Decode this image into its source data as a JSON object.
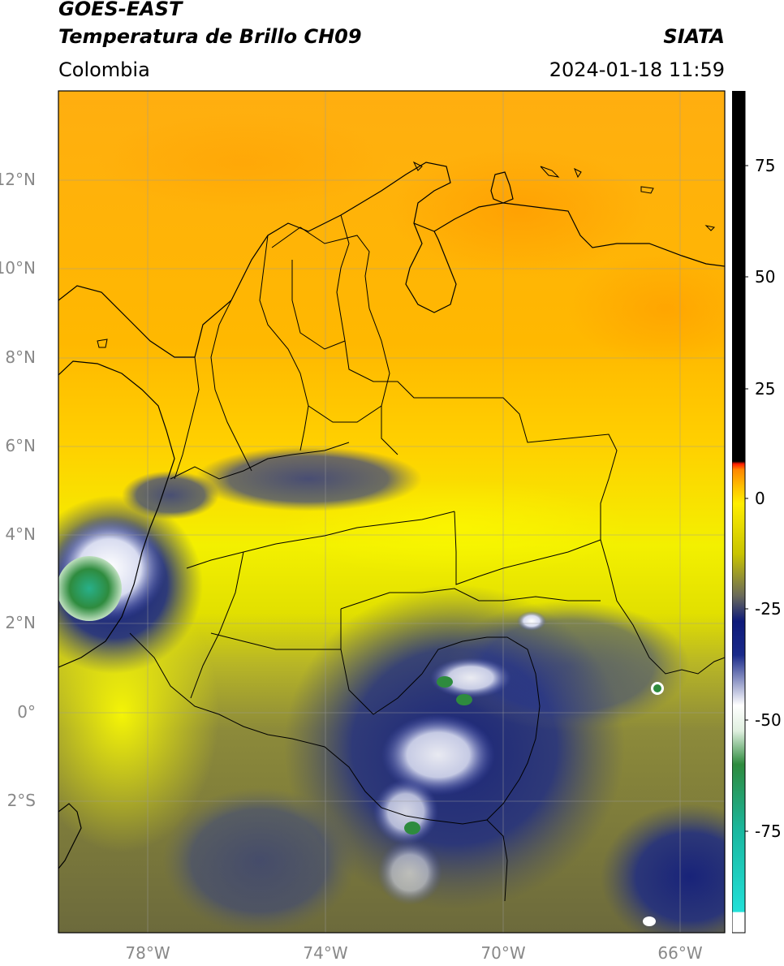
{
  "header": {
    "satellite": "GOES-EAST",
    "product": "Temperatura de Brillo CH09",
    "organization": "SIATA",
    "region": "Colombia",
    "datetime": "2024-01-18 11:59"
  },
  "map": {
    "lon_range": [
      -80,
      -65
    ],
    "lat_range": [
      -5,
      14
    ],
    "lat_ticks": [
      "12°N",
      "10°N",
      "8°N",
      "6°N",
      "4°N",
      "2°N",
      "0°",
      "2°S"
    ],
    "lon_ticks": [
      "78°W",
      "74°W",
      "70°W",
      "66°W"
    ],
    "gridlines": true
  },
  "colorbar": {
    "ticks": [
      "75",
      "50",
      "25",
      "0",
      "-25",
      "-50",
      "-75"
    ],
    "stops": [
      {
        "color": "#ffffff",
        "label": "bottom"
      },
      {
        "color": "#22e0d8"
      },
      {
        "color": "#2e8b3e"
      },
      {
        "color": "#ffffff"
      },
      {
        "color": "#1a2a8a"
      },
      {
        "color": "#0e1a7a"
      },
      {
        "color": "#8b8b3a"
      },
      {
        "color": "#ffee00"
      },
      {
        "color": "#ff8800"
      },
      {
        "color": "#ff1a00"
      },
      {
        "color": "#000000"
      }
    ]
  }
}
